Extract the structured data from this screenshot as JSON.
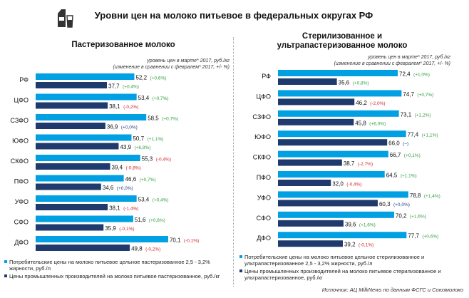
{
  "page": {
    "title": "Уровни цен на молоко питьевое в федеральных округах РФ",
    "source": "Источник: АЦ MilkNews по данным ФСГС и Союзмолоко"
  },
  "colors": {
    "consumer": "#00a0e3",
    "producer": "#1f3b6e",
    "pos": "#2e9e3f",
    "neg": "#d21f26",
    "zero": "#1f3b8c"
  },
  "left": {
    "title": "Пастеризованное молоко",
    "unit_line1": "уровень цен в марте* 2017, руб./кг",
    "unit_line2": "(изменение в сравнении с февралем* 2017, +/- %)",
    "legend": [
      "Потребительские цены на молоко питьевое цельное пастеризованное 2,5 - 3,2% жирности, руб./л",
      "Цены промышленных производителей на молоко питьевое пастеризованное, руб./кг"
    ]
  },
  "right": {
    "title_line1": "Стерилизованное и",
    "title_line2": "ультрапастеризованное молоко",
    "unit_line1": "уровень цен в марте* 2017, руб./кг",
    "unit_line2": "(изменение в сравнении с февралем* 2017, +/- %)",
    "legend": [
      "Потребительские цены на молоко питьевое цельное стерилизованное и ультрапастеризованное 2,5 - 3,2% жирности, руб./л",
      "Цены промышленных производителей на молоко питьевое стерилизованное и ультрапастеризованное, руб./кг"
    ]
  },
  "chart_data": [
    {
      "type": "bar",
      "orientation": "horizontal",
      "categories": [
        "РФ",
        "ЦФО",
        "СЗФО",
        "ЮФО",
        "СКФО",
        "ПФО",
        "УФО",
        "СФО",
        "ДФО"
      ],
      "series": [
        {
          "name": "Потребительские цены на молоко питьевое цельное пастеризованное 2,5 - 3,2% жирности, руб./л",
          "values": [
            52.2,
            53.4,
            58.5,
            50.7,
            55.3,
            46.6,
            53.4,
            51.6,
            70.1
          ],
          "labels": [
            "52,2",
            "53,4",
            "58,5",
            "50,7",
            "55,3",
            "46,6",
            "53,4",
            "51,6",
            "70,1"
          ],
          "changes": [
            "(+0,6%)",
            "(+0,7%)",
            "(+0,7%)",
            "(+1,1%)",
            "(-0,4%)",
            "(+0,7%)",
            "(+0,4%)",
            "(+0,6%)",
            "(-0,1%)"
          ]
        },
        {
          "name": "Цены промышленных производителей на молоко питьевое пастеризованное, руб./кг",
          "values": [
            37.7,
            38.1,
            36.9,
            43.9,
            39.4,
            34.6,
            38.1,
            35.9,
            49.8
          ],
          "labels": [
            "37,7",
            "38,1",
            "36,9",
            "43,9",
            "39,4",
            "34,6",
            "38,1",
            "35,9",
            "49,8"
          ],
          "changes": [
            "(+0,4%)",
            "(-0,2%)",
            "(+0,0%)",
            "(+6,8%)",
            "(-0,8%)",
            "(+0,0%)",
            "(-1,4%)",
            "(-0,1%)",
            "(-0,2%)"
          ]
        }
      ],
      "xlim": [
        0,
        72
      ]
    },
    {
      "type": "bar",
      "orientation": "horizontal",
      "categories": [
        "РФ",
        "ЦФО",
        "СЗФО",
        "ЮФО",
        "СКФО",
        "ПФО",
        "УФО",
        "СФО",
        "ДФО"
      ],
      "series": [
        {
          "name": "Потребительские цены на молоко питьевое цельное стерилизованное и ультрапастеризованное 2,5 - 3,2% жирности, руб./л",
          "values": [
            72.4,
            74.7,
            73.1,
            77.4,
            66.7,
            64.5,
            78.8,
            70.2,
            77.7
          ],
          "labels": [
            "72,4",
            "74,7",
            "73,1",
            "77,4",
            "66,7",
            "64,5",
            "78,8",
            "70,2",
            "77,7"
          ],
          "changes": [
            "(+1,0%)",
            "(+0,7%)",
            "(+1,2%)",
            "(+1,1%)",
            "(+0,1%)",
            "(+1,1%)",
            "(+1,4%)",
            "(+1,6%)",
            "(+0,6%)"
          ]
        },
        {
          "name": "Цены промышленных производителей на молоко питьевое стерилизованное и ультрапастеризованное, руб./кг",
          "values": [
            35.6,
            46.2,
            45.8,
            66.0,
            38.7,
            32.0,
            60.3,
            39.6,
            39.2
          ],
          "labels": [
            "35,6",
            "46,2",
            "45,8",
            "66,0",
            "38,7",
            "32,0",
            "60,3",
            "39,6",
            "39,2"
          ],
          "changes": [
            "(+0,8%)",
            "(-2,0%)",
            "(+6,0%)",
            "(–)",
            "(-2,7%)",
            "(-0,4%)",
            "(+0,0%)",
            "(+1,6%)",
            "(-0,1%)"
          ]
        }
      ],
      "xlim": [
        0,
        81
      ]
    }
  ]
}
